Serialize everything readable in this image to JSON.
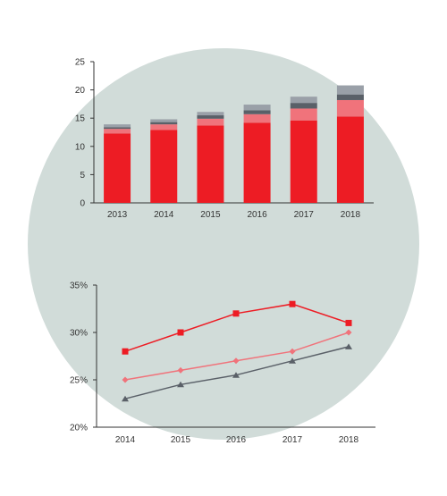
{
  "colors": {
    "background_circle": "#d1dcd9",
    "axis": "#333333",
    "red": "#ed1c24",
    "pink": "#f0737b",
    "dark_gray": "#5a6068",
    "light_gray": "#9aa0a8"
  },
  "chart_data": [
    {
      "type": "bar",
      "stacked": true,
      "categories": [
        "2013",
        "2014",
        "2015",
        "2016",
        "2017",
        "2018"
      ],
      "series": [
        {
          "color": "#ed1c24",
          "values": [
            12.3,
            12.9,
            13.7,
            14.2,
            14.6,
            15.3
          ]
        },
        {
          "color": "#f0737b",
          "values": [
            0.8,
            1.0,
            1.2,
            1.5,
            2.1,
            2.9
          ]
        },
        {
          "color": "#5a6068",
          "values": [
            0.3,
            0.4,
            0.6,
            0.7,
            1.0,
            1.0
          ]
        },
        {
          "color": "#9aa0a8",
          "values": [
            0.5,
            0.5,
            0.6,
            1.0,
            1.1,
            1.6
          ]
        }
      ],
      "ylim": [
        0,
        25
      ],
      "yticks": [
        "0",
        "5",
        "10",
        "15",
        "20",
        "25"
      ],
      "grid": false
    },
    {
      "type": "line",
      "x": [
        "2014",
        "2015",
        "2016",
        "2017",
        "2018"
      ],
      "series": [
        {
          "color": "#ed1c24",
          "marker": "square",
          "values": [
            28,
            30,
            32,
            33,
            31
          ]
        },
        {
          "color": "#f0737b",
          "marker": "diamond",
          "values": [
            25,
            26,
            27,
            28,
            30
          ]
        },
        {
          "color": "#5a6068",
          "marker": "triangle",
          "values": [
            23,
            24.5,
            25.5,
            27,
            28.5
          ]
        }
      ],
      "ylim": [
        20,
        35
      ],
      "yticks": [
        "20%",
        "25%",
        "30%",
        "35%"
      ],
      "grid": false
    }
  ]
}
